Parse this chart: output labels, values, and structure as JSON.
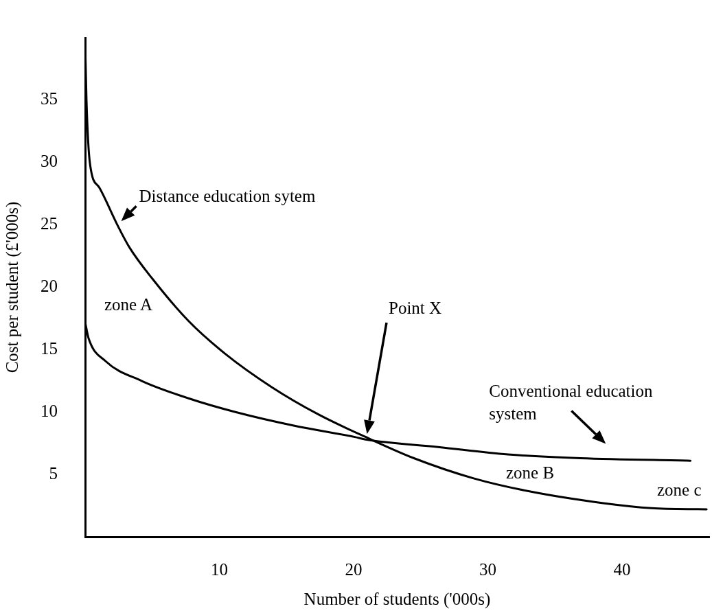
{
  "chart_data": {
    "type": "line",
    "xlabel": "Number of students ('000s)",
    "ylabel": "Cost per student (£'000s)",
    "xlim": [
      0,
      46.5
    ],
    "ylim": [
      0,
      40
    ],
    "xticks": [
      10,
      20,
      30,
      40
    ],
    "yticks": [
      5,
      10,
      15,
      20,
      25,
      30,
      35
    ],
    "grid": false,
    "legend": false,
    "marker": "none",
    "line_style": "solid",
    "series": [
      {
        "name": "Distance education sytem",
        "color": "#000000",
        "x": [
          0,
          0.1,
          0.35,
          1.05,
          2.4,
          3.3,
          5.0,
          7.7,
          10.4,
          13.9,
          17.4,
          21.1,
          24.5,
          28.9,
          33.3,
          38.6,
          42.2,
          46.3
        ],
        "values": [
          39.8,
          35,
          30,
          28,
          25,
          23.2,
          20.7,
          17.3,
          14.7,
          12.0,
          9.8,
          7.9,
          6.3,
          4.7,
          3.6,
          2.7,
          2.3,
          2.2
        ]
      },
      {
        "name": "Conventional education system",
        "color": "#000000",
        "x": [
          0,
          0.26,
          1.5,
          4.2,
          7.7,
          11.2,
          15.6,
          20.1,
          20.9,
          26.3,
          31.5,
          36.9,
          45.1
        ],
        "values": [
          17.2,
          15.9,
          14.1,
          12.5,
          11.1,
          10.0,
          8.9,
          8.0,
          7.8,
          7.2,
          6.6,
          6.3,
          6.1
        ]
      }
    ],
    "annotations": [
      "zone A",
      "Point X",
      "zone B",
      "zone c"
    ]
  }
}
